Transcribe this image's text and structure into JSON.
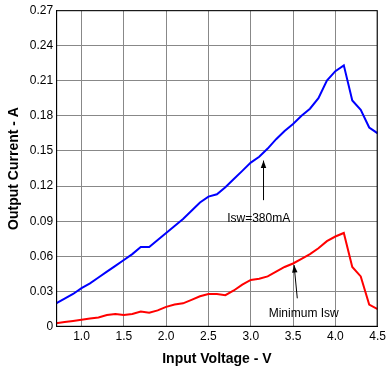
{
  "chart_data": {
    "type": "line",
    "x_label": "Input Voltage - V",
    "y_label": "Output Current - A",
    "xlim": [
      0.7,
      4.5
    ],
    "xticks": [
      {
        "value": 1.0,
        "label": "1.0"
      },
      1.5,
      {
        "value": 2.0,
        "label": "2.0"
      },
      2.5,
      {
        "value": 3.0,
        "label": "3.0"
      },
      3.5,
      {
        "value": 4.0,
        "label": "4.0"
      },
      4.5
    ],
    "ylim": [
      0,
      0.27
    ],
    "yticks": [
      0,
      0.03,
      0.06,
      0.09,
      0.12,
      0.15,
      0.18,
      0.21,
      0.24,
      0.27
    ],
    "grid": true,
    "x": [
      0.7,
      0.8,
      0.9,
      1.0,
      1.1,
      1.2,
      1.3,
      1.4,
      1.5,
      1.6,
      1.7,
      1.8,
      1.9,
      2.0,
      2.1,
      2.2,
      2.3,
      2.4,
      2.5,
      2.6,
      2.7,
      2.8,
      2.9,
      3.0,
      3.1,
      3.2,
      3.3,
      3.4,
      3.5,
      3.6,
      3.7,
      3.8,
      3.9,
      4.0,
      4.1,
      4.2,
      4.3,
      4.4,
      4.5
    ],
    "series": [
      {
        "color": "#0000ff",
        "values": [
          0.02,
          0.024,
          0.028,
          0.033,
          0.037,
          0.042,
          0.047,
          0.052,
          0.057,
          0.062,
          0.068,
          0.068,
          0.074,
          0.08,
          0.086,
          0.092,
          0.099,
          0.106,
          0.111,
          0.113,
          0.119,
          0.126,
          0.133,
          0.14,
          0.145,
          0.152,
          0.16,
          0.167,
          0.173,
          0.18,
          0.186,
          0.195,
          0.21,
          0.218,
          0.223,
          0.193,
          0.185,
          0.17,
          0.165
        ]
      },
      {
        "color": "#ff0000",
        "values": [
          0.003,
          0.004,
          0.005,
          0.006,
          0.007,
          0.008,
          0.01,
          0.011,
          0.01,
          0.011,
          0.013,
          0.012,
          0.014,
          0.017,
          0.019,
          0.02,
          0.023,
          0.026,
          0.028,
          0.028,
          0.027,
          0.031,
          0.036,
          0.04,
          0.041,
          0.043,
          0.047,
          0.051,
          0.054,
          0.058,
          0.062,
          0.067,
          0.073,
          0.077,
          0.08,
          0.051,
          0.043,
          0.019,
          0.015
        ]
      }
    ],
    "annotations": [
      {
        "text": "Isw=380mA"
      },
      {
        "text": "Minimum Isw"
      }
    ]
  }
}
